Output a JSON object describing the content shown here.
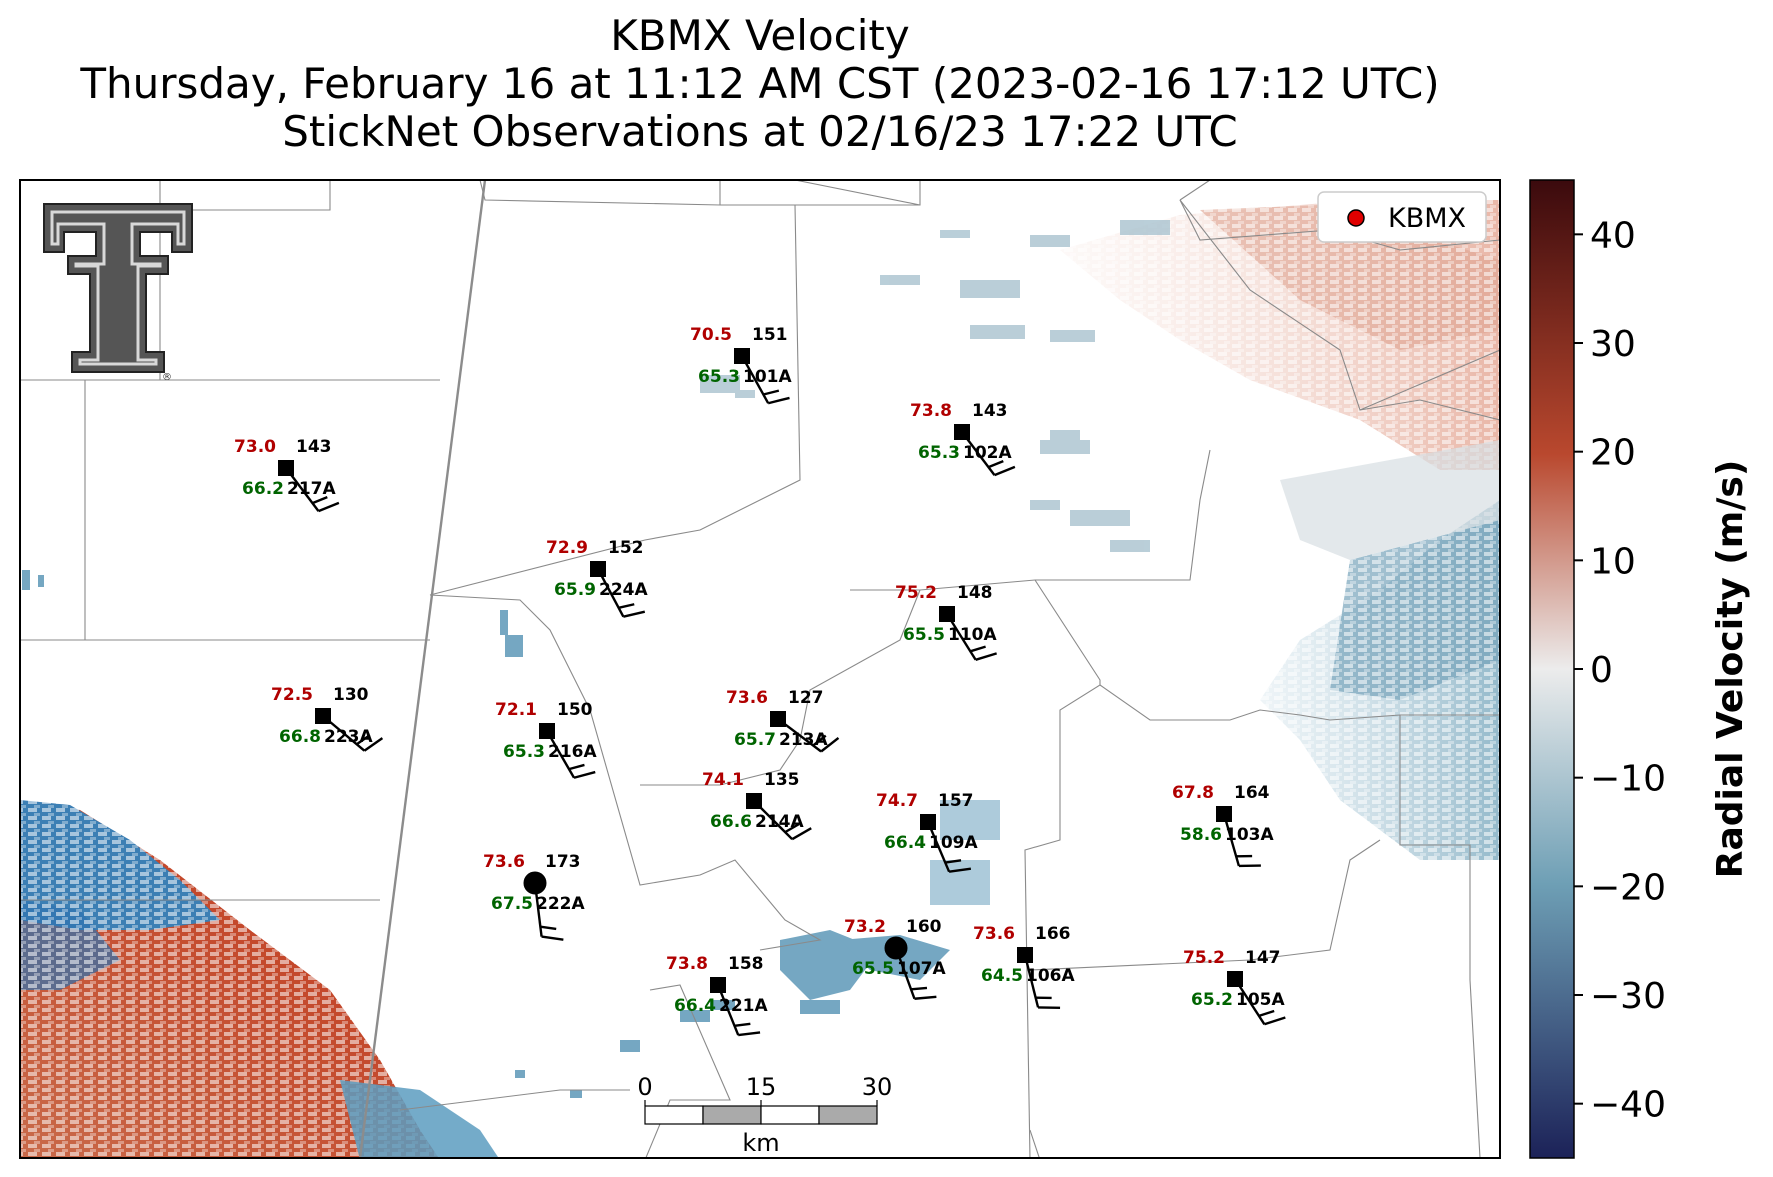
{
  "title": {
    "line1": "KBMX Velocity",
    "line2": "Thursday, February 16 at 11:12 AM CST (2023-02-16 17:12 UTC)",
    "line3": "StickNet Observations at 02/16/23 17:22 UTC"
  },
  "legend": {
    "label": "KBMX",
    "marker_color": "#e00000"
  },
  "logo": {
    "name": "Texas Tech Double T",
    "mark": "®"
  },
  "colorbar": {
    "label": "Radial Velocity (m/s)",
    "ticks": [
      "40",
      "30",
      "20",
      "10",
      "0",
      "−10",
      "−20",
      "−30",
      "−40"
    ],
    "range": [
      -45,
      45
    ],
    "colors": {
      "max": "#3b0a0d",
      "high": "#b9482e",
      "mid": "#ececec",
      "low": "#6e9fb5",
      "min": "#1c2258"
    }
  },
  "scale_bar": {
    "ticks": [
      "0",
      "15",
      "30"
    ],
    "unit": "km"
  },
  "stations": [
    {
      "id": "101A",
      "temp": "70.5",
      "dew": "65.3",
      "dir": "151",
      "marker": "square"
    },
    {
      "id": "102A",
      "temp": "73.8",
      "dew": "65.3",
      "dir": "143",
      "marker": "square"
    },
    {
      "id": "217A",
      "temp": "73.0",
      "dew": "66.2",
      "dir": "143",
      "marker": "square"
    },
    {
      "id": "224A",
      "temp": "72.9",
      "dew": "65.9",
      "dir": "152",
      "marker": "square"
    },
    {
      "id": "110A",
      "temp": "75.2",
      "dew": "65.5",
      "dir": "148",
      "marker": "square"
    },
    {
      "id": "223A",
      "temp": "72.5",
      "dew": "66.8",
      "dir": "130",
      "marker": "square"
    },
    {
      "id": "216A",
      "temp": "72.1",
      "dew": "65.3",
      "dir": "150",
      "marker": "square"
    },
    {
      "id": "213A",
      "temp": "73.6",
      "dew": "65.7",
      "dir": "127",
      "marker": "square"
    },
    {
      "id": "214A",
      "temp": "74.1",
      "dew": "66.6",
      "dir": "135",
      "marker": "square"
    },
    {
      "id": "109A",
      "temp": "74.7",
      "dew": "66.4",
      "dir": "157",
      "marker": "square"
    },
    {
      "id": "103A",
      "temp": "67.8",
      "dew": "58.6",
      "dir": "164",
      "marker": "square"
    },
    {
      "id": "222A",
      "temp": "73.6",
      "dew": "67.5",
      "dir": "173",
      "marker": "circle"
    },
    {
      "id": "107A",
      "temp": "73.2",
      "dew": "65.5",
      "dir": "160",
      "marker": "circle"
    },
    {
      "id": "106A",
      "temp": "73.6",
      "dew": "64.5",
      "dir": "166",
      "marker": "square"
    },
    {
      "id": "221A",
      "temp": "73.8",
      "dew": "66.4",
      "dir": "158",
      "marker": "square"
    },
    {
      "id": "105A",
      "temp": "75.2",
      "dew": "65.2",
      "dir": "147",
      "marker": "square"
    }
  ]
}
